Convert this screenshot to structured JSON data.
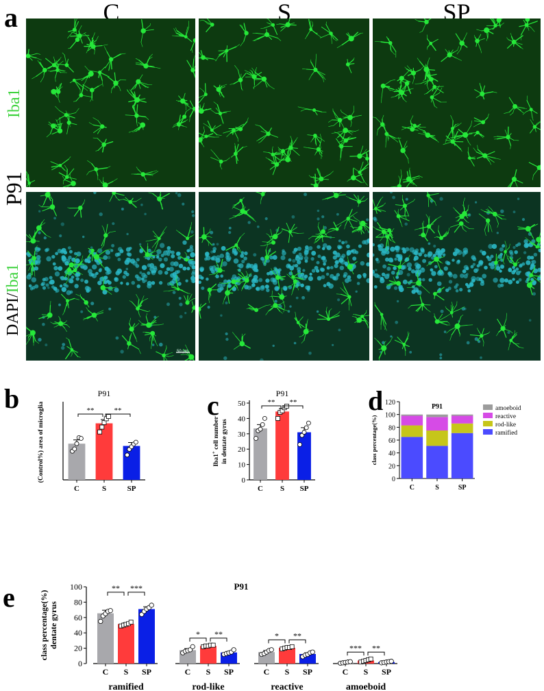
{
  "panel_a": {
    "letter": "a",
    "columns": [
      "C",
      "S",
      "SP"
    ],
    "age_label": "P91",
    "row1_label": "Iba1",
    "row2_label_a": "DAPI/",
    "row2_label_b": "Iba1",
    "scale_text": "50 µm",
    "colors": {
      "iba1": "#26e83a",
      "dapi": "#2ab8c6"
    }
  },
  "chart_data": [
    {
      "panel": "b",
      "type": "bar",
      "title": "P91",
      "ylabel": "(Control%) area of microglia",
      "xlabel": "",
      "categories": [
        "C",
        "S",
        "SP"
      ],
      "values": [
        96,
        150,
        90
      ],
      "errors": [
        10,
        10,
        9
      ],
      "points": [
        [
          76,
          82,
          96,
          112,
          110
        ],
        [
          127,
          140,
          152,
          162,
          168
        ],
        [
          66,
          81,
          88,
          95,
          100
        ]
      ],
      "ylim": [
        0,
        200
      ],
      "show_yticks": false,
      "colors": [
        "#a8a8ac",
        "#ff3b3b",
        "#0a1fe6"
      ],
      "significance": [
        {
          "from": 0,
          "to": 1,
          "label": "**"
        },
        {
          "from": 1,
          "to": 2,
          "label": "**"
        }
      ]
    },
    {
      "panel": "c",
      "type": "bar",
      "title": "P91",
      "ylabel": "Iba1+ cell number in dentate gyrus",
      "ylabel_lines": [
        "Iba1",
        "+",
        " cell number",
        "in dentate gyrus"
      ],
      "xlabel": "",
      "categories": [
        "C",
        "S",
        "SP"
      ],
      "values": [
        33.5,
        44.5,
        31
      ],
      "errors": [
        2.5,
        2,
        3
      ],
      "points": [
        [
          27,
          32,
          33,
          36,
          40
        ],
        [
          40,
          44,
          45,
          47,
          48
        ],
        [
          23,
          29,
          31,
          34,
          37
        ]
      ],
      "ylim": [
        0,
        50
      ],
      "yticks": [
        0,
        10,
        20,
        30,
        40,
        50
      ],
      "colors": [
        "#a8a8ac",
        "#ff3b3b",
        "#0a1fe6"
      ],
      "significance": [
        {
          "from": 0,
          "to": 1,
          "label": "**"
        },
        {
          "from": 1,
          "to": 2,
          "label": "**"
        }
      ]
    },
    {
      "panel": "d",
      "type": "bar",
      "stacked": true,
      "title": "P91",
      "ylabel": "class percentage(%)",
      "xlabel": "",
      "categories": [
        "C",
        "S",
        "SP"
      ],
      "series": [
        {
          "name": "ramified",
          "values": [
            65,
            51,
            71
          ]
        },
        {
          "name": "rod-like",
          "values": [
            18,
            24,
            15
          ]
        },
        {
          "name": "reactive",
          "values": [
            15,
            21,
            12
          ]
        },
        {
          "name": "amoeboid",
          "values": [
            2,
            4,
            2
          ]
        }
      ],
      "ylim": [
        0,
        120
      ],
      "yticks": [
        0,
        20,
        40,
        60,
        80,
        100,
        120
      ],
      "legend_order": [
        "amoeboid",
        "reactive",
        "rod-like",
        "ramified"
      ],
      "legend_position": "right",
      "colors": {
        "ramified": "#4b4bff",
        "rod-like": "#c6c61a",
        "reactive": "#d64be6",
        "amoeboid": "#9c9c9c"
      }
    },
    {
      "panel": "e",
      "type": "bar",
      "title": "P91",
      "ylabel": "class percentage(%) dentate gyrus",
      "ylabel_lines": [
        "class percentage(%)",
        "dentate gyrus"
      ],
      "xlabel": "",
      "ylim": [
        0,
        100
      ],
      "yticks": [
        0,
        20,
        40,
        60,
        80,
        100
      ],
      "group_labels": [
        "ramified",
        "rod-like",
        "reactive",
        "amoeboid"
      ],
      "categories": [
        "C",
        "S",
        "SP"
      ],
      "colors": [
        "#a8a8ac",
        "#ff3b3b",
        "#0a1fe6"
      ],
      "groups": [
        {
          "values": [
            65.5,
            51.5,
            71
          ],
          "errors": [
            4,
            1.5,
            3
          ],
          "points": [
            [
              55,
              62,
              65,
              68,
              69
            ],
            [
              49,
              50,
              51,
              52,
              54
            ],
            [
              64,
              68,
              71,
              73,
              76
            ]
          ]
        },
        {
          "values": [
            17.5,
            23,
            14.5
          ],
          "errors": [
            2,
            1.2,
            1.3
          ],
          "points": [
            [
              14,
              16,
              17,
              18,
              22
            ],
            [
              22,
              23,
              23,
              24,
              24
            ],
            [
              12,
              13,
              14,
              15,
              18
            ]
          ]
        },
        {
          "values": [
            15,
            20.5,
            12.5
          ],
          "errors": [
            2,
            1,
            1.5
          ],
          "points": [
            [
              12,
              13,
              15,
              17,
              18
            ],
            [
              19,
              20,
              21,
              21,
              22
            ],
            [
              9,
              11,
              12,
              14,
              15
            ]
          ]
        },
        {
          "values": [
            1.5,
            4,
            2
          ],
          "errors": [
            0.6,
            1,
            0.6
          ],
          "points": [
            [
              0.5,
              1,
              1.5,
              2,
              2.5
            ],
            [
              2,
              3,
              4,
              5,
              6
            ],
            [
              1,
              1.5,
              2,
              2.5,
              3
            ]
          ]
        }
      ],
      "significance": [
        {
          "group": 0,
          "pairs": [
            {
              "from": 0,
              "to": 1,
              "label": "**"
            },
            {
              "from": 1,
              "to": 2,
              "label": "***"
            }
          ]
        },
        {
          "group": 1,
          "pairs": [
            {
              "from": 0,
              "to": 1,
              "label": "*"
            },
            {
              "from": 1,
              "to": 2,
              "label": "**"
            }
          ]
        },
        {
          "group": 2,
          "pairs": [
            {
              "from": 0,
              "to": 1,
              "label": "*"
            },
            {
              "from": 1,
              "to": 2,
              "label": "**"
            }
          ]
        },
        {
          "group": 3,
          "pairs": [
            {
              "from": 0,
              "to": 1,
              "label": "***"
            },
            {
              "from": 1,
              "to": 2,
              "label": "**"
            }
          ]
        }
      ]
    }
  ]
}
